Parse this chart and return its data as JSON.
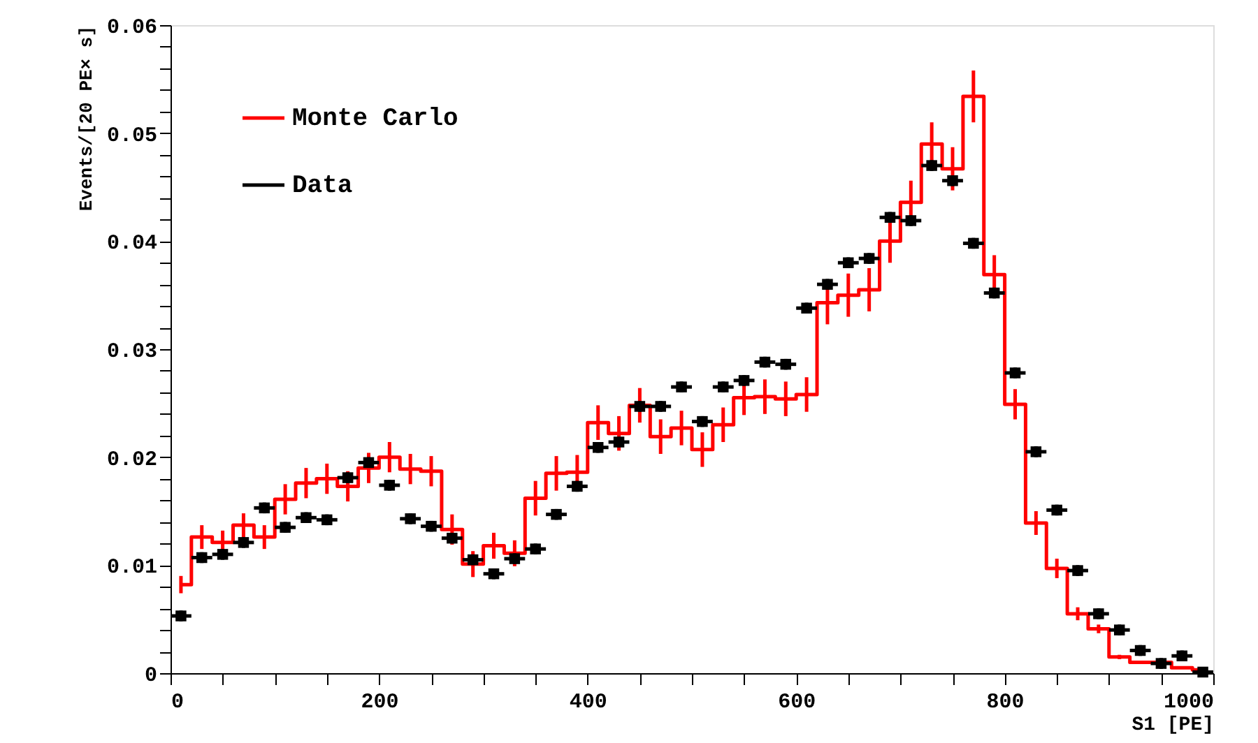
{
  "chart_data": {
    "type": "step",
    "xlabel": "S1 [PE]",
    "ylabel": "Events/[20 PE× s]",
    "series": [
      {
        "name": "Monte Carlo",
        "type": "step",
        "color": "#ff0000",
        "marker": "none",
        "line_style": "solid",
        "x": [
          10,
          30,
          50,
          70,
          90,
          110,
          130,
          150,
          170,
          190,
          210,
          230,
          250,
          270,
          290,
          310,
          330,
          350,
          370,
          390,
          410,
          430,
          450,
          470,
          490,
          510,
          530,
          550,
          570,
          590,
          610,
          630,
          650,
          670,
          690,
          710,
          730,
          750,
          770,
          790,
          810,
          830,
          850,
          870,
          890,
          910,
          930,
          950,
          970,
          990
        ],
        "values": [
          0.0082,
          0.0126,
          0.0121,
          0.0137,
          0.0126,
          0.0161,
          0.0176,
          0.018,
          0.0173,
          0.019,
          0.02,
          0.0189,
          0.0187,
          0.0133,
          0.0101,
          0.0118,
          0.0111,
          0.0162,
          0.0185,
          0.0186,
          0.0232,
          0.0222,
          0.0248,
          0.0219,
          0.0227,
          0.0207,
          0.023,
          0.0255,
          0.0256,
          0.0254,
          0.0258,
          0.0343,
          0.035,
          0.0355,
          0.04,
          0.0436,
          0.049,
          0.0467,
          0.0534,
          0.0369,
          0.0249,
          0.0139,
          0.0097,
          0.0055,
          0.0041,
          0.0015,
          0.001,
          0.001,
          0.0005,
          0.0003
        ],
        "errors": [
          0.0008,
          0.0011,
          0.0011,
          0.0011,
          0.0011,
          0.0014,
          0.0014,
          0.0014,
          0.0014,
          0.0014,
          0.0014,
          0.0014,
          0.0014,
          0.0014,
          0.0012,
          0.0012,
          0.0012,
          0.0016,
          0.0016,
          0.0016,
          0.0016,
          0.0016,
          0.0016,
          0.0016,
          0.0016,
          0.0016,
          0.0016,
          0.0016,
          0.0016,
          0.0016,
          0.0016,
          0.002,
          0.002,
          0.002,
          0.002,
          0.002,
          0.002,
          0.002,
          0.0024,
          0.0018,
          0.0014,
          0.0011,
          0.0009,
          0.0006,
          0.0004,
          0.0002,
          null,
          null,
          null,
          null
        ]
      },
      {
        "name": "Data",
        "type": "scatter",
        "color": "#000000",
        "marker": "square",
        "x": [
          10,
          30,
          50,
          70,
          90,
          110,
          130,
          150,
          170,
          190,
          210,
          230,
          250,
          270,
          290,
          310,
          330,
          350,
          370,
          390,
          410,
          430,
          450,
          470,
          490,
          510,
          530,
          550,
          570,
          590,
          610,
          630,
          650,
          670,
          690,
          710,
          730,
          750,
          770,
          790,
          810,
          830,
          850,
          870,
          890,
          910,
          930,
          950,
          970,
          990
        ],
        "values": [
          0.0053,
          0.0107,
          0.011,
          0.0121,
          0.0153,
          0.0135,
          0.0144,
          0.0142,
          0.0181,
          0.0195,
          0.0174,
          0.0143,
          0.0136,
          0.0125,
          0.0105,
          0.0092,
          0.0106,
          0.0115,
          0.0147,
          0.0173,
          0.0209,
          0.0214,
          0.0247,
          0.0247,
          0.0265,
          0.0233,
          0.0265,
          0.0271,
          0.0288,
          0.0286,
          0.0338,
          0.036,
          0.038,
          0.0384,
          0.0422,
          0.0419,
          0.047,
          0.0456,
          0.0398,
          0.0352,
          0.0278,
          0.0205,
          0.0151,
          0.0095,
          0.0055,
          0.004,
          0.0021,
          0.0009,
          0.0016,
          0.0001
        ],
        "errors": [
          0.0005,
          0.0005,
          0.0005,
          0.0005,
          0.0005,
          0.0005,
          0.0005,
          0.0005,
          0.0005,
          0.0005,
          0.0005,
          0.0005,
          0.0005,
          0.0005,
          0.0005,
          0.0005,
          0.0005,
          0.0005,
          0.0005,
          0.0005,
          0.0005,
          0.0005,
          0.0005,
          0.0005,
          0.0005,
          0.0005,
          0.0005,
          0.0005,
          0.0005,
          0.0005,
          0.0005,
          0.0005,
          0.0005,
          0.0005,
          0.0005,
          0.0005,
          0.0005,
          0.0005,
          0.0005,
          0.0005,
          0.0005,
          0.0005,
          0.0005,
          0.0005,
          0.0005,
          0.0005,
          0.0005,
          0.0005,
          0.0005,
          null
        ],
        "xerrors": [
          10,
          10,
          10,
          10,
          10,
          10,
          10,
          10,
          10,
          10,
          10,
          10,
          10,
          10,
          10,
          10,
          10,
          10,
          10,
          10,
          10,
          10,
          10,
          10,
          10,
          10,
          10,
          10,
          10,
          10,
          10,
          10,
          10,
          10,
          10,
          10,
          10,
          10,
          10,
          10,
          10,
          10,
          10,
          10,
          10,
          10,
          10,
          10,
          10,
          10
        ]
      }
    ],
    "xlim": [
      0,
      1000
    ],
    "xticks": [
      0,
      {
        "value": 50,
        "label": null
      },
      {
        "value": 100,
        "label": null
      },
      {
        "value": 150,
        "label": null
      },
      200,
      {
        "value": 250,
        "label": null
      },
      {
        "value": 300,
        "label": null
      },
      {
        "value": 350,
        "label": null
      },
      400,
      {
        "value": 450,
        "label": null
      },
      {
        "value": 500,
        "label": null
      },
      {
        "value": 550,
        "label": null
      },
      600,
      {
        "value": 650,
        "label": null
      },
      {
        "value": 700,
        "label": null
      },
      {
        "value": 750,
        "label": null
      },
      800,
      {
        "value": 850,
        "label": null
      },
      {
        "value": 900,
        "label": null
      },
      {
        "value": 950,
        "label": null
      },
      1000
    ],
    "ylim": [
      0,
      0.06
    ],
    "yticks": [
      0,
      {
        "value": 0.002,
        "label": null
      },
      {
        "value": 0.004,
        "label": null
      },
      {
        "value": 0.006,
        "label": null
      },
      {
        "value": 0.008,
        "label": null
      },
      0.01,
      {
        "value": 0.012,
        "label": null
      },
      {
        "value": 0.014,
        "label": null
      },
      {
        "value": 0.016,
        "label": null
      },
      {
        "value": 0.018,
        "label": null
      },
      0.02,
      {
        "value": 0.022,
        "label": null
      },
      {
        "value": 0.024,
        "label": null
      },
      {
        "value": 0.026,
        "label": null
      },
      {
        "value": 0.028,
        "label": null
      },
      0.03,
      {
        "value": 0.032,
        "label": null
      },
      {
        "value": 0.034,
        "label": null
      },
      {
        "value": 0.036,
        "label": null
      },
      {
        "value": 0.038,
        "label": null
      },
      0.04,
      {
        "value": 0.042,
        "label": null
      },
      {
        "value": 0.044,
        "label": null
      },
      {
        "value": 0.046,
        "label": null
      },
      {
        "value": 0.048,
        "label": null
      },
      0.05,
      {
        "value": 0.052,
        "label": null
      },
      {
        "value": 0.054,
        "label": null
      },
      {
        "value": 0.056,
        "label": null
      },
      {
        "value": 0.058,
        "label": null
      },
      0.06
    ],
    "grid": false,
    "legend": "top left"
  }
}
